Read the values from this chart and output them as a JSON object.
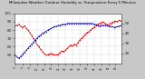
{
  "title": "Milwaukee Weather Outdoor Humidity vs. Temperature Every 5 Minutes",
  "background_color": "#c8c8c8",
  "plot_bg_color": "#ffffff",
  "grid_color": "#aaaaaa",
  "red_color": "#dd0000",
  "blue_color": "#0000cc",
  "red_y": [
    85,
    86,
    87,
    84,
    83,
    85,
    82,
    80,
    77,
    74,
    70,
    67,
    63,
    60,
    57,
    54,
    52,
    50,
    50,
    51,
    52,
    51,
    50,
    50,
    51,
    53,
    55,
    54,
    56,
    58,
    60,
    62,
    61,
    63,
    62,
    65,
    68,
    70,
    72,
    75,
    77,
    78,
    80,
    82,
    83,
    85,
    87,
    88,
    89,
    90,
    88,
    87,
    86,
    88,
    89,
    90,
    91,
    90,
    92,
    91
  ],
  "blue_y": [
    18,
    16,
    15,
    17,
    19,
    21,
    23,
    25,
    27,
    29,
    31,
    33,
    35,
    37,
    38,
    40,
    41,
    42,
    43,
    44,
    45,
    46,
    47,
    47,
    48,
    48,
    49,
    49,
    49,
    50,
    50,
    50,
    50,
    50,
    50,
    50,
    50,
    50,
    50,
    50,
    50,
    50,
    50,
    50,
    49,
    49,
    48,
    47,
    48,
    48,
    48,
    48,
    47,
    47,
    47,
    46,
    46,
    47,
    47,
    48
  ],
  "n_points": 60,
  "ylim_left": [
    40,
    100
  ],
  "ylim_right": [
    10,
    60
  ],
  "left_yticks": [
    50,
    60,
    70,
    80,
    90,
    100
  ],
  "right_yticks": [
    20,
    30,
    40,
    50
  ],
  "marker_size": 1.8,
  "linewidth": 0.5,
  "title_fontsize": 2.8,
  "tick_fontsize": 3.0,
  "xtick_fontsize": 2.0
}
